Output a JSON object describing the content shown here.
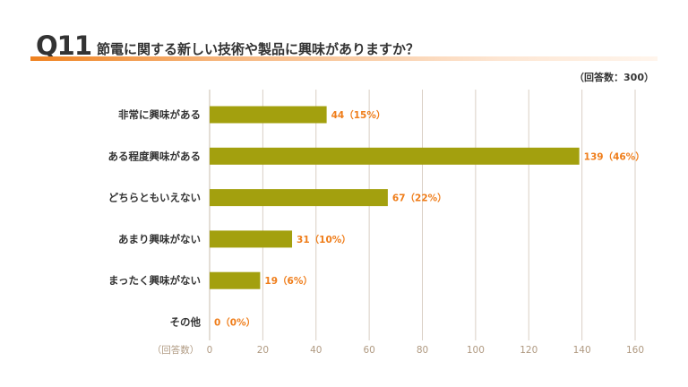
{
  "header": {
    "question_number": "Q11",
    "question_text": "節電に関する新しい技術や製品に興味がありますか？",
    "respondents": "（回答数：300）"
  },
  "colors": {
    "bar": "#a3a00e",
    "value_label": "#ef7d1a",
    "grid": "#d9cfc4",
    "accent": "#ef8220"
  },
  "chart_data": {
    "type": "bar",
    "orientation": "horizontal",
    "categories": [
      "非常に興味がある",
      "ある程度興味がある",
      "どちらともいえない",
      "あまり興味がない",
      "まったく興味がない",
      "その他"
    ],
    "values": [
      44,
      139,
      67,
      31,
      19,
      0
    ],
    "percentages": [
      "15%",
      "46%",
      "22%",
      "10%",
      "6%",
      "0%"
    ],
    "value_labels": [
      "44（15%）",
      "139（46%）",
      "67（22%）",
      "31（10%）",
      "19（6%）",
      "0（0%）"
    ],
    "xlabel": "（回答数）",
    "xlim": [
      0,
      160
    ],
    "xticks": [
      0,
      20,
      40,
      60,
      80,
      100,
      120,
      140,
      160
    ],
    "grid": true
  }
}
